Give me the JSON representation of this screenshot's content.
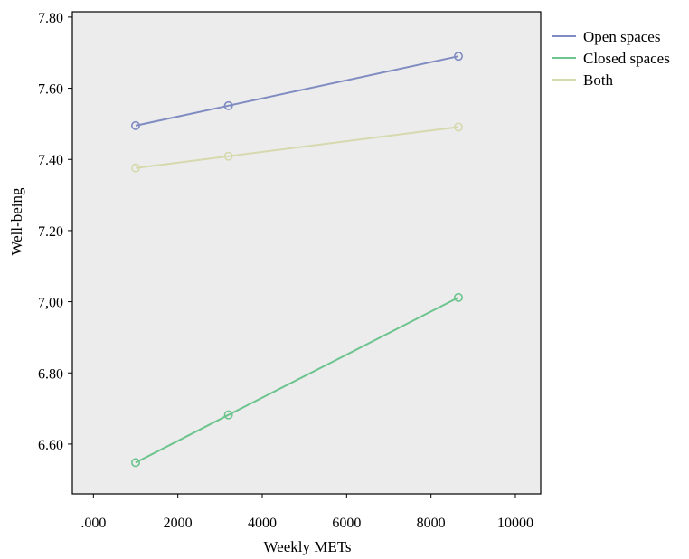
{
  "chart_data": {
    "type": "line",
    "xlabel": "Weekly METs",
    "ylabel": "Well-being",
    "xlim": [
      -500,
      10600
    ],
    "ylim": [
      6.46,
      7.815
    ],
    "x_ticks": [
      {
        "value": 0,
        "label": ".000"
      },
      {
        "value": 2000,
        "label": "2000"
      },
      {
        "value": 4000,
        "label": "4000"
      },
      {
        "value": 6000,
        "label": "6000"
      },
      {
        "value": 8000,
        "label": "8000"
      },
      {
        "value": 10000,
        "label": "10000"
      }
    ],
    "y_ticks": [
      {
        "value": 6.6,
        "label": "6.60"
      },
      {
        "value": 6.8,
        "label": "6.80"
      },
      {
        "value": 7.0,
        "label": "7,00"
      },
      {
        "value": 7.2,
        "label": "7.20"
      },
      {
        "value": 7.4,
        "label": "7.40"
      },
      {
        "value": 7.6,
        "label": "7.60"
      },
      {
        "value": 7.8,
        "label": "7.80"
      }
    ],
    "grid": false,
    "legend_position": "right",
    "background_color": "#ececec",
    "series": [
      {
        "name": "Open spaces",
        "color": "#7f8bc1",
        "x": [
          1000,
          3200,
          8650
        ],
        "y": [
          7.495,
          7.551,
          7.69
        ]
      },
      {
        "name": "Closed spaces",
        "color": "#6dc48e",
        "x": [
          1000,
          3200,
          8650
        ],
        "y": [
          6.548,
          6.682,
          7.012
        ]
      },
      {
        "name": "Both",
        "color": "#d6d9ae",
        "x": [
          1000,
          3200,
          8650
        ],
        "y": [
          7.376,
          7.409,
          7.491
        ]
      }
    ]
  }
}
